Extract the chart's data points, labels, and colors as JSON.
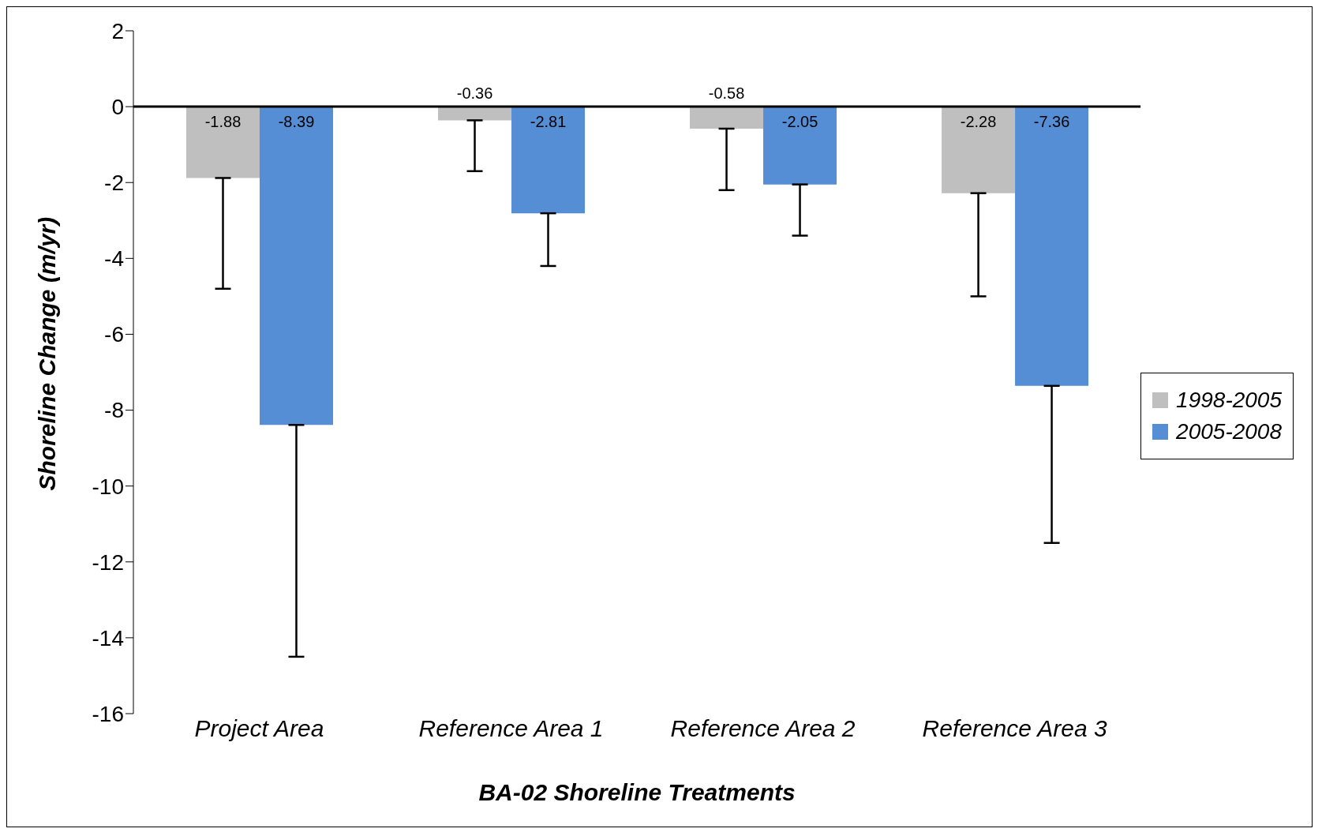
{
  "chart_data": {
    "type": "bar",
    "xlabel": "BA-02 Shoreline Treatments",
    "ylabel": "Shoreline Change (m/yr)",
    "categories": [
      "Project Area",
      "Reference Area 1",
      "Reference Area 2",
      "Reference Area 3"
    ],
    "series": [
      {
        "name": "1998-2005",
        "color": "#bfbfbf",
        "values": [
          -1.88,
          -0.36,
          -0.58,
          -2.28
        ],
        "errors": [
          [
            -4.8,
            -1.88
          ],
          [
            -1.7,
            -0.36
          ],
          [
            -2.2,
            -0.58
          ],
          [
            -5.0,
            -2.28
          ]
        ]
      },
      {
        "name": "2005-2008",
        "color": "#558ed5",
        "values": [
          -8.39,
          -2.81,
          -2.05,
          -7.36
        ],
        "errors": [
          [
            -14.5,
            -8.39
          ],
          [
            -4.2,
            -2.81
          ],
          [
            -3.4,
            -2.05
          ],
          [
            -11.5,
            -7.36
          ]
        ]
      }
    ],
    "ylim": [
      -16,
      2
    ],
    "yticks": [
      -16,
      -14,
      -12,
      -10,
      -8,
      -6,
      -4,
      -2,
      0,
      2
    ],
    "grid": false,
    "ref_lines": [
      {
        "axis": "y",
        "value": 0,
        "color": "#000000"
      }
    ],
    "legend": "right",
    "data_labels": true
  }
}
